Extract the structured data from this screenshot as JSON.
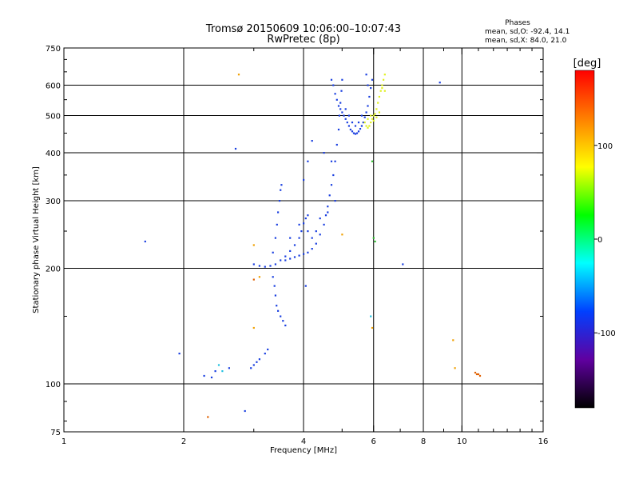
{
  "chart_data": {
    "type": "scatter",
    "title": "Tromsø 20150609 10:06:00–10:07:43",
    "subtitle": "RwPretec (8p)",
    "xlabel": "Frequency [MHz]",
    "ylabel": "Stationary phase Virtual Height [km]",
    "x_scale": "log",
    "y_scale": "log",
    "xlim": [
      1,
      16
    ],
    "ylim": [
      75,
      750
    ],
    "x_ticks": [
      1,
      2,
      4,
      6,
      8,
      10,
      16
    ],
    "y_ticks": [
      75,
      100,
      200,
      300,
      400,
      500,
      600,
      750
    ],
    "grid": true,
    "stats": {
      "heading": "Phases",
      "line1": "mean, sd,O: -92.4, 14.1",
      "line2": "mean, sd,X:  84.0, 21.0"
    },
    "colorbar": {
      "label": "[deg]",
      "range": [
        -180,
        180
      ],
      "ticks": [
        100,
        0,
        -100
      ],
      "colors": [
        "#ff0000",
        "#ff8000",
        "#ffff00",
        "#00ff00",
        "#00ffff",
        "#0040ff",
        "#6000a0",
        "#000000"
      ]
    },
    "series": [
      {
        "color": "#1a3fe0",
        "points": [
          [
            2.25,
            105
          ],
          [
            2.35,
            104
          ],
          [
            2.4,
            108
          ],
          [
            2.6,
            110
          ],
          [
            2.95,
            110
          ],
          [
            3.0,
            112
          ],
          [
            3.05,
            114
          ],
          [
            3.1,
            116
          ],
          [
            3.2,
            120
          ],
          [
            3.25,
            123
          ],
          [
            3.0,
            205
          ],
          [
            3.1,
            203
          ],
          [
            3.2,
            202
          ],
          [
            3.3,
            203
          ],
          [
            3.4,
            205
          ],
          [
            3.5,
            210
          ],
          [
            3.6,
            215
          ],
          [
            3.7,
            222
          ],
          [
            3.8,
            230
          ],
          [
            3.9,
            240
          ],
          [
            3.95,
            250
          ],
          [
            4.0,
            262
          ],
          [
            4.05,
            270
          ],
          [
            4.1,
            275
          ],
          [
            3.35,
            190
          ],
          [
            3.38,
            180
          ],
          [
            3.4,
            170
          ],
          [
            3.42,
            160
          ],
          [
            3.45,
            155
          ],
          [
            3.5,
            150
          ],
          [
            3.55,
            146
          ],
          [
            3.6,
            142
          ],
          [
            3.35,
            220
          ],
          [
            3.4,
            240
          ],
          [
            3.43,
            260
          ],
          [
            3.45,
            280
          ],
          [
            3.48,
            300
          ],
          [
            3.5,
            320
          ],
          [
            3.52,
            330
          ],
          [
            3.6,
            210
          ],
          [
            3.7,
            212
          ],
          [
            3.8,
            214
          ],
          [
            3.9,
            216
          ],
          [
            4.0,
            218
          ],
          [
            4.1,
            220
          ],
          [
            4.2,
            225
          ],
          [
            4.3,
            232
          ],
          [
            4.4,
            245
          ],
          [
            4.5,
            260
          ],
          [
            4.55,
            275
          ],
          [
            4.6,
            290
          ],
          [
            4.65,
            310
          ],
          [
            4.7,
            330
          ],
          [
            4.75,
            350
          ],
          [
            4.8,
            380
          ],
          [
            4.85,
            420
          ],
          [
            4.9,
            460
          ],
          [
            4.92,
            500
          ],
          [
            4.95,
            540
          ],
          [
            4.98,
            580
          ],
          [
            5.0,
            620
          ],
          [
            3.7,
            240
          ],
          [
            3.9,
            260
          ],
          [
            4.1,
            250
          ],
          [
            4.2,
            240
          ],
          [
            4.3,
            250
          ],
          [
            4.4,
            270
          ],
          [
            4.6,
            280
          ],
          [
            4.8,
            300
          ],
          [
            4.05,
            180
          ],
          [
            4.0,
            340
          ],
          [
            4.1,
            380
          ],
          [
            4.2,
            430
          ],
          [
            4.5,
            400
          ],
          [
            4.7,
            380
          ],
          [
            4.7,
            620
          ],
          [
            4.75,
            600
          ],
          [
            4.8,
            570
          ],
          [
            4.85,
            550
          ],
          [
            4.9,
            530
          ],
          [
            4.95,
            520
          ],
          [
            5.0,
            510
          ],
          [
            5.05,
            500
          ],
          [
            5.1,
            490
          ],
          [
            5.15,
            480
          ],
          [
            5.2,
            470
          ],
          [
            5.25,
            460
          ],
          [
            5.3,
            455
          ],
          [
            5.35,
            450
          ],
          [
            5.4,
            448
          ],
          [
            5.45,
            450
          ],
          [
            5.5,
            455
          ],
          [
            5.55,
            462
          ],
          [
            5.6,
            470
          ],
          [
            5.65,
            480
          ],
          [
            5.7,
            495
          ],
          [
            5.75,
            510
          ],
          [
            5.8,
            530
          ],
          [
            5.85,
            560
          ],
          [
            5.9,
            590
          ],
          [
            5.95,
            620
          ],
          [
            5.1,
            520
          ],
          [
            5.2,
            500
          ],
          [
            5.3,
            480
          ],
          [
            5.4,
            470
          ],
          [
            5.5,
            480
          ],
          [
            5.6,
            500
          ],
          [
            5.8,
            600
          ],
          [
            5.75,
            640
          ],
          [
            2.7,
            410
          ],
          [
            2.85,
            85
          ],
          [
            1.95,
            120
          ],
          [
            7.1,
            205
          ],
          [
            8.8,
            610
          ],
          [
            1.6,
            235
          ]
        ]
      },
      {
        "color": "#e0f020",
        "points": [
          [
            5.7,
            480
          ],
          [
            5.75,
            470
          ],
          [
            5.8,
            465
          ],
          [
            5.85,
            470
          ],
          [
            5.9,
            480
          ],
          [
            5.95,
            490
          ],
          [
            6.0,
            500
          ],
          [
            6.05,
            505
          ],
          [
            6.1,
            520
          ],
          [
            6.15,
            540
          ],
          [
            6.2,
            560
          ],
          [
            6.25,
            580
          ],
          [
            6.3,
            600
          ],
          [
            6.35,
            620
          ],
          [
            6.4,
            640
          ],
          [
            5.8,
            490
          ],
          [
            5.9,
            500
          ],
          [
            6.0,
            485
          ],
          [
            6.1,
            495
          ],
          [
            6.2,
            510
          ],
          [
            6.3,
            590
          ],
          [
            6.4,
            580
          ]
        ]
      },
      {
        "color": "#30c030",
        "points": [
          [
            5.95,
            380
          ],
          [
            6.0,
            240
          ],
          [
            6.05,
            235
          ]
        ]
      },
      {
        "color": "#f0a000",
        "points": [
          [
            2.75,
            640
          ],
          [
            3.0,
            230
          ],
          [
            3.1,
            190
          ],
          [
            3.0,
            140
          ],
          [
            5.0,
            245
          ],
          [
            5.95,
            140
          ],
          [
            9.5,
            130
          ],
          [
            9.6,
            110
          ]
        ]
      },
      {
        "color": "#e06000",
        "points": [
          [
            10.8,
            107
          ],
          [
            10.9,
            106
          ],
          [
            11.0,
            106
          ],
          [
            11.1,
            105
          ],
          [
            2.3,
            82
          ],
          [
            3.0,
            187
          ]
        ]
      },
      {
        "color": "#20c0e0",
        "points": [
          [
            2.45,
            112
          ],
          [
            2.5,
            108
          ],
          [
            5.9,
            150
          ]
        ]
      }
    ]
  }
}
